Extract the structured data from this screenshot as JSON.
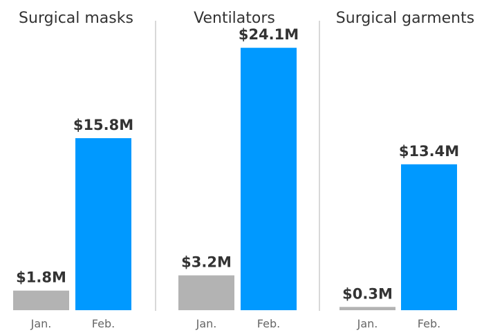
{
  "chart_data": [
    {
      "type": "bar",
      "title": "Surgical masks",
      "categories": [
        "Jan.",
        "Feb."
      ],
      "values": [
        1.8,
        15.8
      ],
      "value_labels": [
        "$1.8M",
        "$15.8M"
      ],
      "colors": [
        "#b3b3b3",
        "#0099ff"
      ],
      "ylim": [
        0,
        25
      ],
      "grid": false,
      "legend": "none"
    },
    {
      "type": "bar",
      "title": "Ventilators",
      "categories": [
        "Jan.",
        "Feb."
      ],
      "values": [
        3.2,
        24.1
      ],
      "value_labels": [
        "$3.2M",
        "$24.1M"
      ],
      "colors": [
        "#b3b3b3",
        "#0099ff"
      ],
      "ylim": [
        0,
        25
      ],
      "grid": false,
      "legend": "none"
    },
    {
      "type": "bar",
      "title": "Surgical garments",
      "categories": [
        "Jan.",
        "Feb."
      ],
      "values": [
        0.3,
        13.4
      ],
      "value_labels": [
        "$0.3M",
        "$13.4M"
      ],
      "colors": [
        "#b3b3b3",
        "#0099ff"
      ],
      "ylim": [
        0,
        25
      ],
      "grid": false,
      "legend": "none"
    }
  ],
  "divider_color": "#cccccc",
  "text_color": "#333333",
  "tick_color": "#666666"
}
